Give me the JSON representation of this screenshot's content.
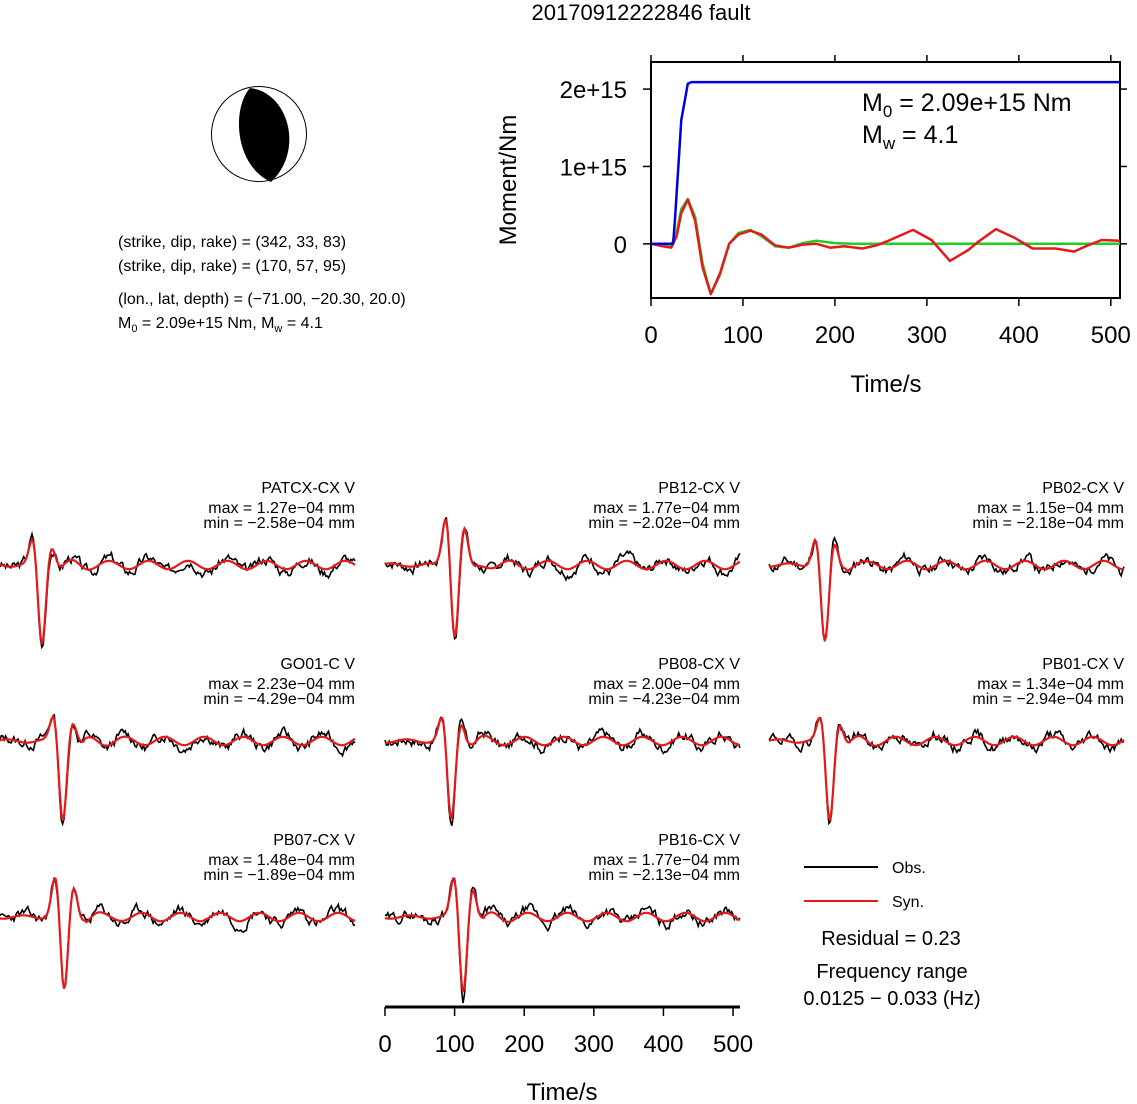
{
  "title": "20170912222846 fault",
  "focal_mechanism": {
    "line1": "(strike, dip, rake) = (342, 33, 83)",
    "line2": "(strike, dip, rake) = (170, 57, 95)",
    "location": "(lon., lat, depth) = (−71.00, −20.30, 20.0)",
    "m0_label": "M",
    "m0_sub": "0",
    "m0_value": " = 2.09e+15 Nm, M",
    "mw_sub": "w",
    "mw_value": " = 4.1"
  },
  "moment_panel": {
    "ylabel": "Moment/Nm",
    "xlabel": "Time/s",
    "m0_prefix": "M",
    "m0_sub": "0",
    "m0_text": " = 2.09e+15 Nm",
    "mw_prefix": "M",
    "mw_sub": "w",
    "mw_text": " = 4.1"
  },
  "waveform_xlabel": "Time/s",
  "legend": {
    "obs": "Obs.",
    "syn": "Syn.",
    "residual": "Residual = 0.23",
    "freq_title": "Frequency range",
    "freq_value": "0.0125 − 0.033 (Hz)"
  },
  "colors": {
    "observed": "#000000",
    "synthetic": "#e31a1c",
    "cumulative_moment": "#0000dd",
    "moment_rate_green": "#22cc22",
    "moment_rate_red": "#e31a1c"
  },
  "chart_data": [
    {
      "type": "line",
      "name": "moment",
      "xlim": [
        0,
        510
      ],
      "ylim": [
        -700000000000000.0,
        2350000000000000.0
      ],
      "xticks": [
        0,
        100,
        200,
        300,
        400,
        500
      ],
      "xtick_labels": [
        "0",
        "100",
        "200",
        "300",
        "400",
        "500"
      ],
      "yticks": [
        0,
        1000000000000000.0,
        2000000000000000.0
      ],
      "ytick_labels": [
        "0",
        "1e+15",
        "2e+15"
      ],
      "series": [
        {
          "id": "cumulative",
          "color": "#0000dd",
          "x": [
            0,
            24,
            26,
            33,
            40,
            44,
            510
          ],
          "y": [
            0,
            0,
            300000000000000.0,
            1600000000000000.0,
            2070000000000000.0,
            2090000000000000.0,
            2090000000000000.0
          ]
        },
        {
          "id": "green",
          "color": "#22cc22",
          "x": [
            0,
            22,
            28,
            33,
            40,
            48,
            56,
            65,
            75,
            85,
            95,
            108,
            120,
            135,
            150,
            165,
            180,
            200,
            220,
            260,
            300,
            400,
            510
          ],
          "y": [
            0,
            -20000000000000.0,
            150000000000000.0,
            450000000000000.0,
            580000000000000.0,
            350000000000000.0,
            -250000000000000.0,
            -650000000000000.0,
            -400000000000000.0,
            0.0,
            140000000000000.0,
            180000000000000.0,
            100000000000000.0,
            -30000000000000.0,
            -50000000000000.0,
            10000000000000.0,
            40000000000000.0,
            10000000000000.0,
            0,
            0,
            0,
            0,
            0
          ]
        },
        {
          "id": "red",
          "color": "#e31a1c",
          "x": [
            0,
            12,
            22,
            28,
            33,
            40,
            48,
            56,
            65,
            75,
            85,
            95,
            108,
            120,
            135,
            150,
            165,
            180,
            195,
            210,
            230,
            245,
            260,
            285,
            305,
            325,
            345,
            355,
            375,
            395,
            415,
            440,
            460,
            475,
            490,
            510
          ],
          "y": [
            0,
            -30000000000000.0,
            -50000000000000.0,
            100000000000000.0,
            400000000000000.0,
            570000000000000.0,
            300000000000000.0,
            -300000000000000.0,
            -650000000000000.0,
            -380000000000000.0,
            0.0,
            120000000000000.0,
            170000000000000.0,
            120000000000000.0,
            -20000000000000.0,
            -50000000000000.0,
            -10000000000000.0,
            0.0,
            -50000000000000.0,
            -30000000000000.0,
            -60000000000000.0,
            -20000000000000.0,
            50000000000000.0,
            180000000000000.0,
            50000000000000.0,
            -220000000000000.0,
            -80000000000000.0,
            20000000000000.0,
            190000000000000.0,
            80000000000000.0,
            -60000000000000.0,
            -60000000000000.0,
            -100000000000000.0,
            -20000000000000.0,
            50000000000000.0,
            40000000000000.0
          ]
        }
      ]
    },
    {
      "type": "line",
      "name": "waveforms",
      "xlim": [
        0,
        510
      ],
      "xticks": [
        0,
        100,
        200,
        300,
        400,
        500
      ],
      "xtick_labels": [
        "0",
        "100",
        "200",
        "300",
        "400",
        "500"
      ],
      "stations": [
        {
          "name": "PATCX-CX V",
          "max": "max = 1.27e−04 mm",
          "min": "min = −2.58e−04 mm",
          "peak_t": 60,
          "amp_up": 0.63,
          "amp_dn": 1.25,
          "seed": 3
        },
        {
          "name": "PB12-CX V",
          "max": "max = 1.77e−04 mm",
          "min": "min = −2.02e−04 mm",
          "peak_t": 100,
          "amp_up": 1.12,
          "amp_dn": 1.25,
          "seed": 7
        },
        {
          "name": "PB02-CX V",
          "max": "max = 1.15e−04 mm",
          "min": "min = −2.18e−04 mm",
          "peak_t": 80,
          "amp_up": 0.68,
          "amp_dn": 1.25,
          "seed": 11
        },
        {
          "name": "GO01-C V",
          "max": "max = 2.23e−04 mm",
          "min": "min = −4.29e−04 mm",
          "peak_t": 90,
          "amp_up": 0.63,
          "amp_dn": 1.25,
          "seed": 13
        },
        {
          "name": "PB08-CX V",
          "max": "max = 2.00e−04 mm",
          "min": "min = −4.23e−04 mm",
          "peak_t": 95,
          "amp_up": 0.6,
          "amp_dn": 1.25,
          "seed": 17
        },
        {
          "name": "PB01-CX V",
          "max": "max = 1.34e−04 mm",
          "min": "min = −2.94e−04 mm",
          "peak_t": 87,
          "amp_up": 0.6,
          "amp_dn": 1.25,
          "seed": 19
        },
        {
          "name": "PB07-CX V",
          "max": "max = 1.48e−04 mm",
          "min": "min = −1.89e−04 mm",
          "peak_t": 92,
          "amp_up": 0.95,
          "amp_dn": 1.25,
          "seed": 23
        },
        {
          "name": "PB16-CX V",
          "max": "max = 1.77e−04 mm",
          "min": "min = −2.13e−04 mm",
          "peak_t": 112,
          "amp_up": 0.92,
          "amp_dn": 1.25,
          "seed": 29
        }
      ]
    }
  ]
}
